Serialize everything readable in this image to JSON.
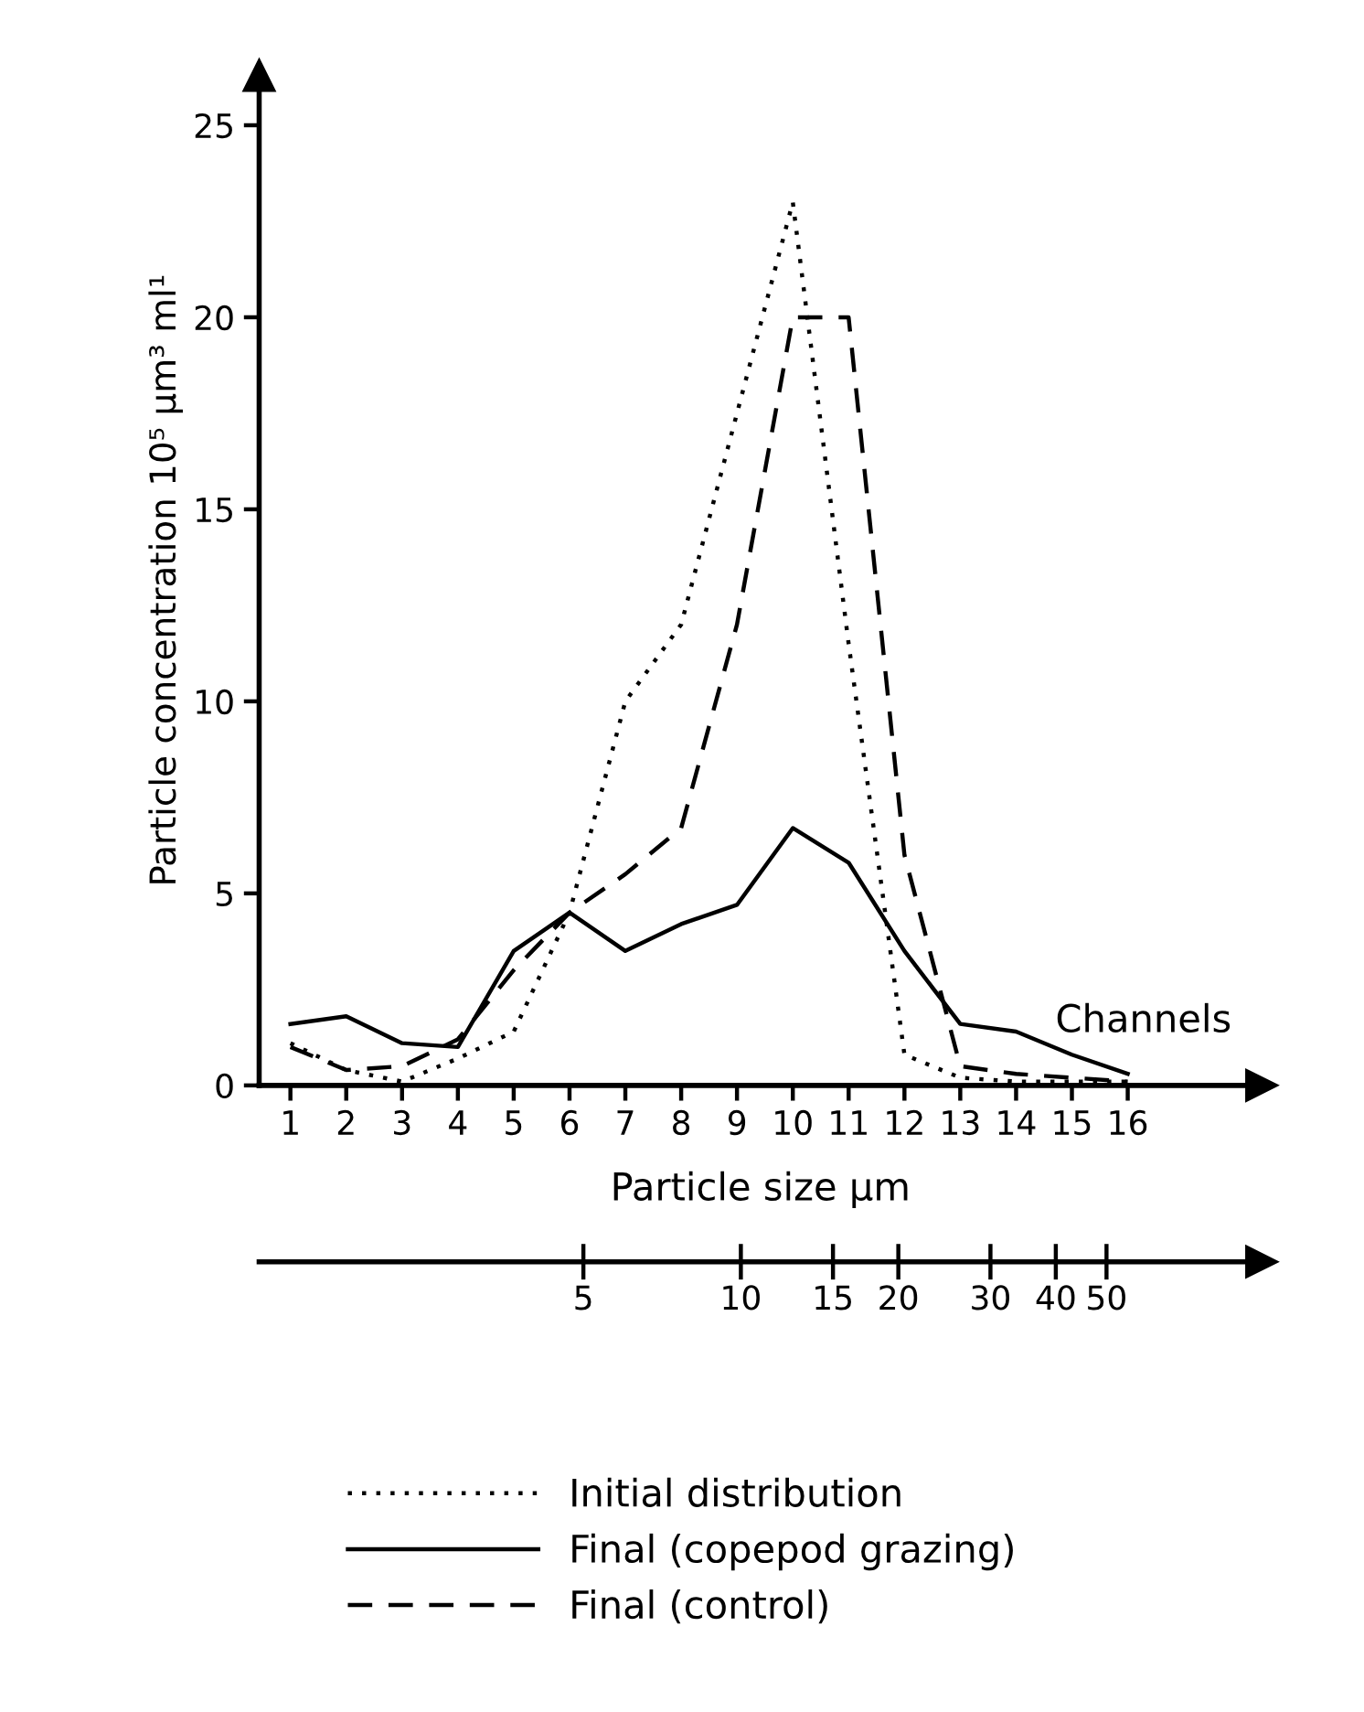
{
  "chart_data": {
    "type": "line",
    "xlabel": "Channels",
    "ylabel": "Particle concentration 10⁵ µm³ ml¹",
    "x": [
      1,
      2,
      3,
      4,
      5,
      6,
      7,
      8,
      9,
      10,
      11,
      12,
      13,
      14,
      15,
      16
    ],
    "xlim": [
      0.44,
      18.4
    ],
    "xticks": [
      1,
      2,
      3,
      4,
      5,
      6,
      7,
      8,
      9,
      10,
      11,
      12,
      13,
      14,
      15,
      16
    ],
    "ylim": [
      0,
      26.3
    ],
    "yticks": [
      0,
      5,
      10,
      15,
      20,
      25
    ],
    "x2label": "Particle size µm",
    "x2lim": [
      1.2,
      99
    ],
    "x2ticks": [
      5,
      10,
      15,
      20,
      30,
      40,
      50
    ],
    "log": "x2",
    "grid": false,
    "legend": "bottom",
    "marker": "none",
    "series": [
      {
        "name": "Initial distribution",
        "color": "#000000",
        "line_style": "dotted",
        "values": [
          1.1,
          0.4,
          0.1,
          0.7,
          1.4,
          4.5,
          10,
          12,
          17.5,
          23,
          11.5,
          0.8,
          0.2,
          0.1,
          0.1,
          0.1
        ]
      },
      {
        "name": "Final (copepod grazing)",
        "color": "#000000",
        "line_style": "solid",
        "values": [
          1.6,
          1.8,
          1.1,
          1.0,
          3.5,
          4.5,
          3.5,
          4.2,
          4.7,
          6.7,
          5.8,
          3.5,
          1.6,
          1.4,
          0.8,
          0.3
        ]
      },
      {
        "name": "Final (control)",
        "color": "#000000",
        "line_style": "dashed",
        "values": [
          1.0,
          0.4,
          0.5,
          1.2,
          3.0,
          4.5,
          5.5,
          6.7,
          12,
          20,
          20,
          6,
          0.5,
          0.3,
          0.2,
          0.1
        ]
      }
    ]
  }
}
